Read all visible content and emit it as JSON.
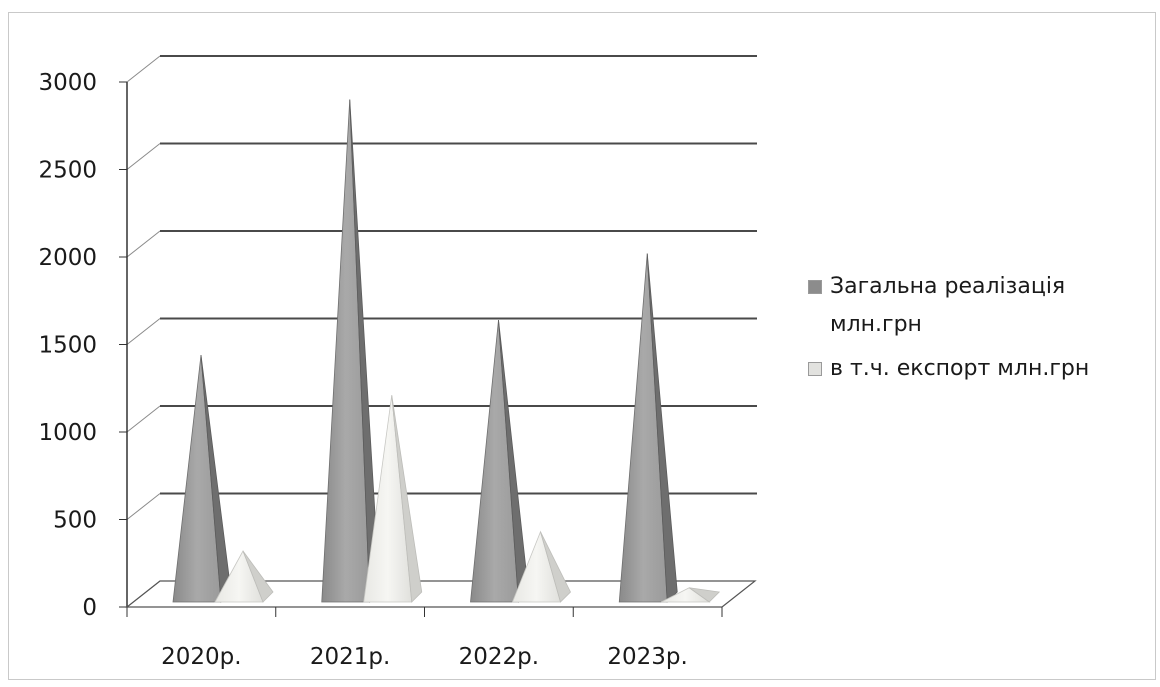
{
  "chart_data": {
    "type": "bar",
    "style": "3d-pyramid",
    "categories": [
      "2020р.",
      "2021р.",
      "2022р.",
      "2023р."
    ],
    "series": [
      {
        "name": "Загальна реалізація млн.грн",
        "values": [
          1440,
          2900,
          1640,
          2020
        ],
        "color": "#8c8c8c"
      },
      {
        "name": "в т.ч. експорт млн.грн",
        "values": [
          320,
          1210,
          430,
          110
        ],
        "color": "#e2e2df"
      }
    ],
    "y_ticks": [
      "0",
      "500",
      "1000",
      "1500",
      "2000",
      "2500",
      "3000"
    ],
    "ylim": [
      0,
      3000
    ],
    "grid": true,
    "legend_position": "right"
  }
}
